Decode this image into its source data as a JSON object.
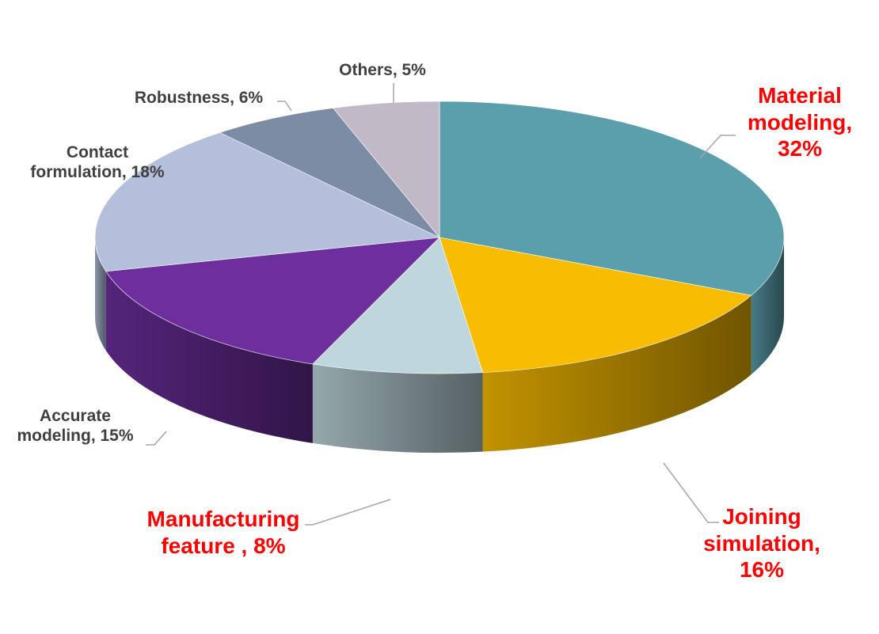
{
  "chart_data": {
    "type": "pie",
    "style": "3d",
    "slices": [
      {
        "label": "Material\nmodeling,\n32%",
        "name": "Material modeling",
        "value": 32,
        "color": "#5b9fad",
        "highlight": true
      },
      {
        "label": "Joining\nsimulation,\n16%",
        "name": "Joining simulation",
        "value": 16,
        "color": "#f8bc00",
        "highlight": true
      },
      {
        "label": "Manufacturing\nfeature , 8%",
        "name": "Manufacturing feature",
        "value": 8,
        "color": "#bed7dd",
        "highlight": true
      },
      {
        "label": "Accurate\nmodeling, 15%",
        "name": "Accurate modeling",
        "value": 15,
        "color": "#6d2f9e",
        "highlight": false
      },
      {
        "label": "Contact\nformulation, 18%",
        "name": "Contact formulation",
        "value": 18,
        "color": "#b3bfdb",
        "highlight": false
      },
      {
        "label": "Robustness, 6%",
        "name": "Robustness",
        "value": 6,
        "color": "#7d8ca5",
        "highlight": false
      },
      {
        "label": "Others, 5%",
        "name": "Others",
        "value": 5,
        "color": "#c2b9c6",
        "highlight": false
      }
    ],
    "label_color_highlight": "#ff0000",
    "label_color_default": "#404040",
    "leader_line_color": "#a6a6a6"
  }
}
